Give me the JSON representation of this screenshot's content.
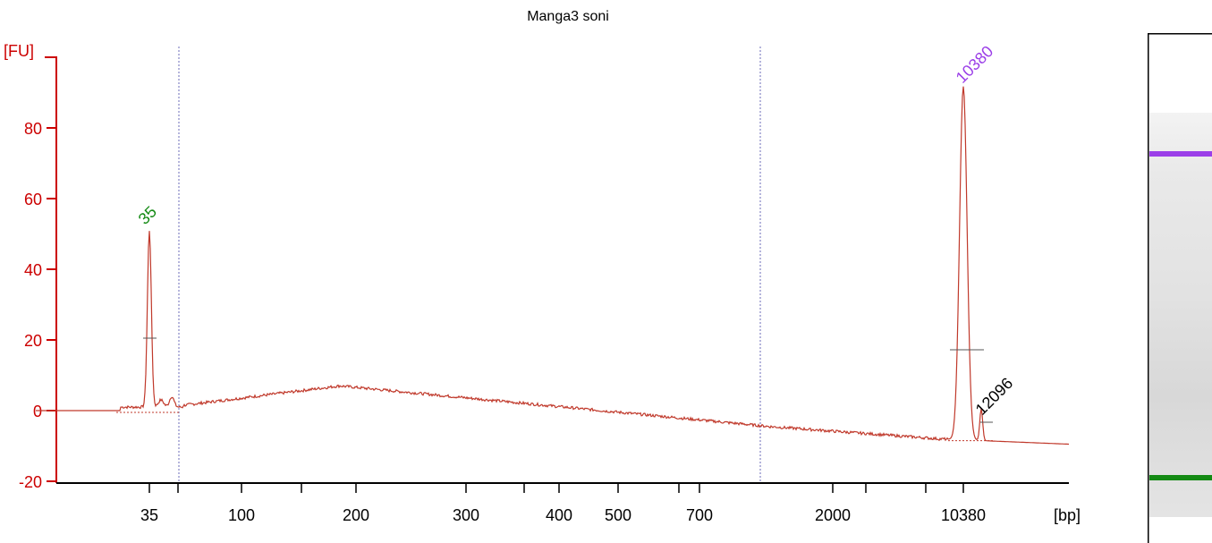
{
  "chart_data": {
    "type": "line",
    "title": "Manga3 soni",
    "xlabel": "[bp]",
    "ylabel": "[FU]",
    "ylim": [
      -20,
      100
    ],
    "yticks": [
      -20,
      0,
      20,
      40,
      60,
      80
    ],
    "x_ticks": [
      "35",
      "100",
      "200",
      "300",
      "400",
      "500",
      "700",
      "2000",
      "10380"
    ],
    "x_scale": "ladder (non-linear)",
    "grid": false,
    "series": [
      {
        "x": [
          "35",
          "100",
          "200",
          "300",
          "400",
          "500",
          "700",
          "2000",
          "10380"
        ],
        "values": [
          50,
          4,
          7,
          5,
          3,
          1,
          -2,
          -7,
          92
        ],
        "color": "#c0392b"
      }
    ],
    "peaks": [
      {
        "label": "35",
        "value": 50,
        "color": "#138a13"
      },
      {
        "label": "10380",
        "value": 92,
        "color": "#9b3fe8"
      },
      {
        "label": "12096",
        "value": 1,
        "color": "#000000"
      }
    ],
    "region_markers": "dotted vertical lines",
    "colors": {
      "axis": "#cc0000",
      "trace": "#c0392b",
      "lower_marker": "#138a13",
      "upper_marker": "#9b3fe8",
      "gel_background": "#e0e0e0"
    }
  }
}
